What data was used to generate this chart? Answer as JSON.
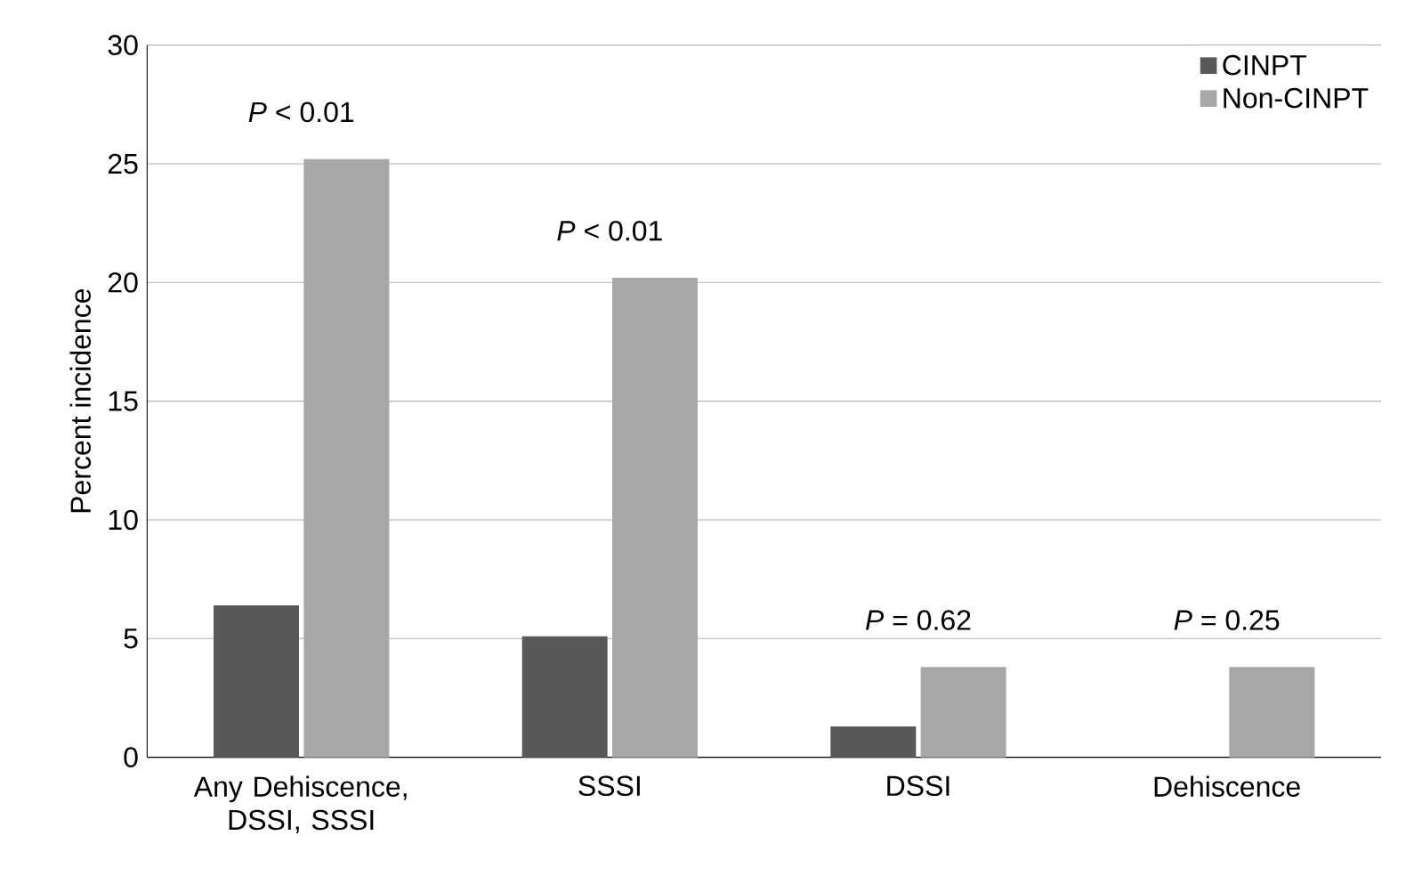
{
  "chart_data": {
    "type": "bar",
    "categories": [
      "Any Dehiscence, DSSI, SSSI",
      "SSSI",
      "DSSI",
      "Dehiscence"
    ],
    "series": [
      {
        "name": "CINPT",
        "color": "#58595b",
        "values": [
          6.4,
          5.1,
          1.3,
          0
        ]
      },
      {
        "name": "Non-CINPT",
        "color": "#a6a7a9",
        "values": [
          25.2,
          20.2,
          3.8,
          3.8
        ]
      }
    ],
    "ylabel": "Percent incidence",
    "ylim": [
      0,
      30
    ],
    "yticks": [
      0,
      5,
      10,
      15,
      20,
      25,
      30
    ],
    "annotations": [
      "*P* < 0.01",
      "*P* < 0.01",
      "*P* = 0.62",
      "*P* = 0.25"
    ],
    "grid": "y",
    "legend": "top right"
  }
}
